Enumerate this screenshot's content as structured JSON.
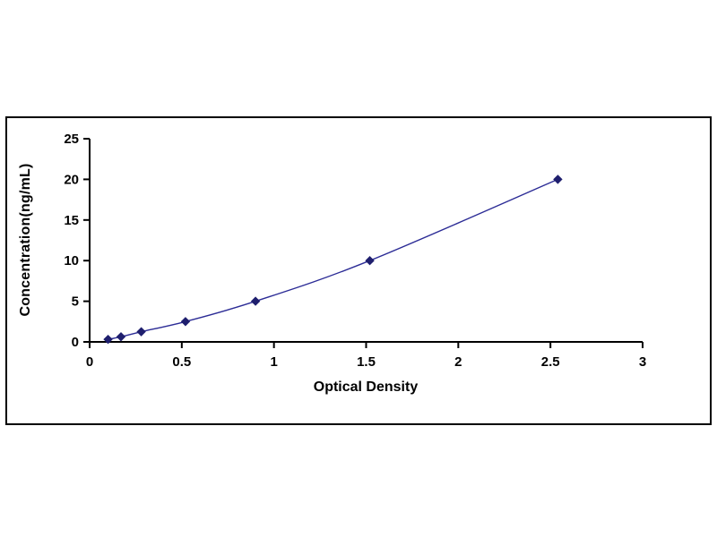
{
  "page": {
    "background": "#ffffff"
  },
  "chart_data": {
    "type": "scatter",
    "title": "",
    "xlabel": "Optical Density",
    "ylabel": "Concentration(ng/mL)",
    "xlim": [
      0,
      3
    ],
    "ylim": [
      0,
      25
    ],
    "xticks": [
      0,
      0.5,
      1,
      1.5,
      2,
      2.5,
      3
    ],
    "xtick_labels": [
      "0",
      "0.5",
      "1",
      "1.5",
      "2",
      "2.5",
      "3"
    ],
    "yticks": [
      0,
      5,
      10,
      15,
      20,
      25
    ],
    "ytick_labels": [
      "0",
      "5",
      "10",
      "15",
      "20",
      "25"
    ],
    "grid": false,
    "legend": false,
    "axis_color": "#000000",
    "tick_font_size": 15,
    "series": [
      {
        "name": "standard-curve",
        "marker": "diamond",
        "line_color": "#2c2c96",
        "marker_color": "#1f1f6e",
        "points": [
          {
            "x": 0.1,
            "y": 0.31
          },
          {
            "x": 0.17,
            "y": 0.63
          },
          {
            "x": 0.28,
            "y": 1.25
          },
          {
            "x": 0.52,
            "y": 2.5
          },
          {
            "x": 0.9,
            "y": 5.0
          },
          {
            "x": 1.52,
            "y": 10.0
          },
          {
            "x": 2.54,
            "y": 20.0
          }
        ]
      }
    ]
  }
}
